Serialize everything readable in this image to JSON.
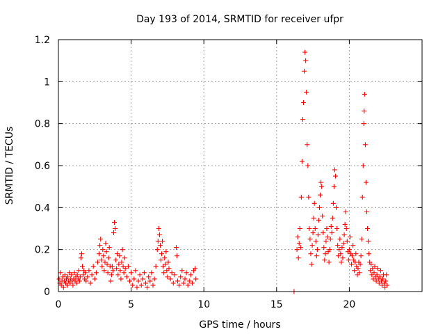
{
  "chart_data": {
    "type": "scatter",
    "title": "Day 193 of 2014, SRMTID for receiver ufpr",
    "xlabel": "GPS time / hours",
    "ylabel": "SRMTID / TECUs",
    "xlim": [
      0,
      25
    ],
    "ylim": [
      0,
      1.2
    ],
    "x_ticks": [
      0,
      5,
      10,
      15,
      20
    ],
    "x_tick_labels": [
      "0",
      "5",
      "10",
      "15",
      "20"
    ],
    "y_ticks": [
      0,
      0.2,
      0.4,
      0.6,
      0.8,
      1.0,
      1.2
    ],
    "y_tick_labels": [
      "0",
      "0.2",
      "0.4",
      "0.6",
      "0.8",
      "1",
      "1.2"
    ],
    "grid": true,
    "marker": "plus",
    "series": [
      {
        "name": "SRMTID",
        "color": "#ff0000",
        "points": [
          [
            0.05,
            0.06
          ],
          [
            0.1,
            0.04
          ],
          [
            0.15,
            0.09
          ],
          [
            0.2,
            0.03
          ],
          [
            0.25,
            0.05
          ],
          [
            0.3,
            0.07
          ],
          [
            0.35,
            0.02
          ],
          [
            0.4,
            0.05
          ],
          [
            0.45,
            0.08
          ],
          [
            0.5,
            0.04
          ],
          [
            0.55,
            0.06
          ],
          [
            0.6,
            0.03
          ],
          [
            0.65,
            0.07
          ],
          [
            0.7,
            0.05
          ],
          [
            0.75,
            0.09
          ],
          [
            0.8,
            0.04
          ],
          [
            0.85,
            0.06
          ],
          [
            0.9,
            0.08
          ],
          [
            0.95,
            0.05
          ],
          [
            1.0,
            0.03
          ],
          [
            1.05,
            0.06
          ],
          [
            1.1,
            0.09
          ],
          [
            1.15,
            0.05
          ],
          [
            1.2,
            0.07
          ],
          [
            1.25,
            0.04
          ],
          [
            1.3,
            0.08
          ],
          [
            1.35,
            0.06
          ],
          [
            1.4,
            0.1
          ],
          [
            1.45,
            0.05
          ],
          [
            1.5,
            0.07
          ],
          [
            1.55,
            0.16
          ],
          [
            1.6,
            0.18
          ],
          [
            1.65,
            0.12
          ],
          [
            1.7,
            0.08
          ],
          [
            1.75,
            0.1
          ],
          [
            1.8,
            0.06
          ],
          [
            1.85,
            0.09
          ],
          [
            1.9,
            0.05
          ],
          [
            2.0,
            0.07
          ],
          [
            2.1,
            0.1
          ],
          [
            2.2,
            0.04
          ],
          [
            2.3,
            0.08
          ],
          [
            2.4,
            0.12
          ],
          [
            2.5,
            0.06
          ],
          [
            2.6,
            0.09
          ],
          [
            2.7,
            0.14
          ],
          [
            2.8,
            0.18
          ],
          [
            2.85,
            0.22
          ],
          [
            2.9,
            0.25
          ],
          [
            2.95,
            0.15
          ],
          [
            3.0,
            0.12
          ],
          [
            3.05,
            0.2
          ],
          [
            3.1,
            0.17
          ],
          [
            3.15,
            0.1
          ],
          [
            3.2,
            0.14
          ],
          [
            3.25,
            0.23
          ],
          [
            3.3,
            0.19
          ],
          [
            3.35,
            0.13
          ],
          [
            3.4,
            0.09
          ],
          [
            3.45,
            0.16
          ],
          [
            3.5,
            0.21
          ],
          [
            3.55,
            0.12
          ],
          [
            3.6,
            0.05
          ],
          [
            3.65,
            0.08
          ],
          [
            3.7,
            0.12
          ],
          [
            3.75,
            0.1
          ],
          [
            3.8,
            0.28
          ],
          [
            3.85,
            0.33
          ],
          [
            3.9,
            0.3
          ],
          [
            3.95,
            0.15
          ],
          [
            4.0,
            0.11
          ],
          [
            4.05,
            0.18
          ],
          [
            4.1,
            0.08
          ],
          [
            4.15,
            0.13
          ],
          [
            4.2,
            0.17
          ],
          [
            4.25,
            0.1
          ],
          [
            4.3,
            0.06
          ],
          [
            4.35,
            0.14
          ],
          [
            4.4,
            0.2
          ],
          [
            4.45,
            0.12
          ],
          [
            4.5,
            0.09
          ],
          [
            4.55,
            0.16
          ],
          [
            4.6,
            0.11
          ],
          [
            4.7,
            0.07
          ],
          [
            4.8,
            0.12
          ],
          [
            4.9,
            0.05
          ],
          [
            5.0,
            0.09
          ],
          [
            5.1,
            0.03
          ],
          [
            5.2,
            0.06
          ],
          [
            5.3,
            0.1
          ],
          [
            5.4,
            0.02
          ],
          [
            5.5,
            0.05
          ],
          [
            5.6,
            0.08
          ],
          [
            5.7,
            0.03
          ],
          [
            5.8,
            0.06
          ],
          [
            5.9,
            0.09
          ],
          [
            6.0,
            0.04
          ],
          [
            6.1,
            0.02
          ],
          [
            6.2,
            0.07
          ],
          [
            6.3,
            0.05
          ],
          [
            6.4,
            0.09
          ],
          [
            6.5,
            0.03
          ],
          [
            6.6,
            0.06
          ],
          [
            6.7,
            0.12
          ],
          [
            6.8,
            0.2
          ],
          [
            6.85,
            0.24
          ],
          [
            6.9,
            0.3
          ],
          [
            6.95,
            0.27
          ],
          [
            7.0,
            0.22
          ],
          [
            7.05,
            0.15
          ],
          [
            7.1,
            0.18
          ],
          [
            7.15,
            0.24
          ],
          [
            7.2,
            0.12
          ],
          [
            7.25,
            0.09
          ],
          [
            7.3,
            0.16
          ],
          [
            7.35,
            0.13
          ],
          [
            7.4,
            0.19
          ],
          [
            7.45,
            0.1
          ],
          [
            7.5,
            0.07
          ],
          [
            7.55,
            0.14
          ],
          [
            7.6,
            0.11
          ],
          [
            7.7,
            0.06
          ],
          [
            7.8,
            0.09
          ],
          [
            7.9,
            0.04
          ],
          [
            8.0,
            0.08
          ],
          [
            8.1,
            0.21
          ],
          [
            8.15,
            0.17
          ],
          [
            8.2,
            0.05
          ],
          [
            8.3,
            0.03
          ],
          [
            8.4,
            0.07
          ],
          [
            8.5,
            0.1
          ],
          [
            8.6,
            0.04
          ],
          [
            8.7,
            0.06
          ],
          [
            8.8,
            0.09
          ],
          [
            8.9,
            0.03
          ],
          [
            9.0,
            0.05
          ],
          [
            9.1,
            0.08
          ],
          [
            9.2,
            0.04
          ],
          [
            9.3,
            0.1
          ],
          [
            9.4,
            0.11
          ],
          [
            9.45,
            0.06
          ],
          [
            16.2,
            0.0
          ],
          [
            16.4,
            0.2
          ],
          [
            16.45,
            0.26
          ],
          [
            16.5,
            0.16
          ],
          [
            16.55,
            0.23
          ],
          [
            16.6,
            0.3
          ],
          [
            16.65,
            0.21
          ],
          [
            16.7,
            0.45
          ],
          [
            16.75,
            0.62
          ],
          [
            16.8,
            0.82
          ],
          [
            16.85,
            0.9
          ],
          [
            16.9,
            1.05
          ],
          [
            16.95,
            1.14
          ],
          [
            17.0,
            1.1
          ],
          [
            17.05,
            0.95
          ],
          [
            17.1,
            0.7
          ],
          [
            17.15,
            0.6
          ],
          [
            17.2,
            0.45
          ],
          [
            17.25,
            0.3
          ],
          [
            17.3,
            0.25
          ],
          [
            17.35,
            0.18
          ],
          [
            17.4,
            0.13
          ],
          [
            17.45,
            0.22
          ],
          [
            17.5,
            0.28
          ],
          [
            17.55,
            0.35
          ],
          [
            17.6,
            0.42
          ],
          [
            17.65,
            0.3
          ],
          [
            17.7,
            0.24
          ],
          [
            17.75,
            0.17
          ],
          [
            17.8,
            0.2
          ],
          [
            17.85,
            0.27
          ],
          [
            17.9,
            0.34
          ],
          [
            17.95,
            0.4
          ],
          [
            18.0,
            0.46
          ],
          [
            18.05,
            0.52
          ],
          [
            18.1,
            0.5
          ],
          [
            18.15,
            0.36
          ],
          [
            18.2,
            0.28
          ],
          [
            18.25,
            0.21
          ],
          [
            18.3,
            0.15
          ],
          [
            18.35,
            0.18
          ],
          [
            18.4,
            0.24
          ],
          [
            18.45,
            0.3
          ],
          [
            18.5,
            0.26
          ],
          [
            18.55,
            0.19
          ],
          [
            18.6,
            0.14
          ],
          [
            18.65,
            0.2
          ],
          [
            18.7,
            0.25
          ],
          [
            18.75,
            0.31
          ],
          [
            18.8,
            0.28
          ],
          [
            18.85,
            0.35
          ],
          [
            18.9,
            0.42
          ],
          [
            18.95,
            0.5
          ],
          [
            19.0,
            0.58
          ],
          [
            19.05,
            0.55
          ],
          [
            19.1,
            0.4
          ],
          [
            19.15,
            0.3
          ],
          [
            19.2,
            0.22
          ],
          [
            19.25,
            0.17
          ],
          [
            19.3,
            0.2
          ],
          [
            19.35,
            0.25
          ],
          [
            19.4,
            0.18
          ],
          [
            19.45,
            0.14
          ],
          [
            19.5,
            0.21
          ],
          [
            19.55,
            0.16
          ],
          [
            19.6,
            0.23
          ],
          [
            19.65,
            0.27
          ],
          [
            19.7,
            0.32
          ],
          [
            19.75,
            0.38
          ],
          [
            19.8,
            0.3
          ],
          [
            19.85,
            0.24
          ],
          [
            19.9,
            0.19
          ],
          [
            19.95,
            0.15
          ],
          [
            20.0,
            0.2
          ],
          [
            20.05,
            0.26
          ],
          [
            20.1,
            0.18
          ],
          [
            20.15,
            0.13
          ],
          [
            20.2,
            0.17
          ],
          [
            20.25,
            0.22
          ],
          [
            20.3,
            0.15
          ],
          [
            20.35,
            0.1
          ],
          [
            20.4,
            0.14
          ],
          [
            20.45,
            0.18
          ],
          [
            20.5,
            0.12
          ],
          [
            20.55,
            0.08
          ],
          [
            20.6,
            0.11
          ],
          [
            20.65,
            0.14
          ],
          [
            20.7,
            0.09
          ],
          [
            20.75,
            0.13
          ],
          [
            20.8,
            0.17
          ],
          [
            20.85,
            0.25
          ],
          [
            20.9,
            0.45
          ],
          [
            20.95,
            0.6
          ],
          [
            21.0,
            0.8
          ],
          [
            21.02,
            0.86
          ],
          [
            21.05,
            0.94
          ],
          [
            21.1,
            0.7
          ],
          [
            21.15,
            0.52
          ],
          [
            21.2,
            0.38
          ],
          [
            21.25,
            0.3
          ],
          [
            21.3,
            0.24
          ],
          [
            21.35,
            0.18
          ],
          [
            21.4,
            0.14
          ],
          [
            21.45,
            0.1
          ],
          [
            21.5,
            0.13
          ],
          [
            21.55,
            0.08
          ],
          [
            21.6,
            0.11
          ],
          [
            21.65,
            0.06
          ],
          [
            21.7,
            0.09
          ],
          [
            21.75,
            0.12
          ],
          [
            21.8,
            0.07
          ],
          [
            21.85,
            0.05
          ],
          [
            21.9,
            0.08
          ],
          [
            21.95,
            0.11
          ],
          [
            22.0,
            0.06
          ],
          [
            22.05,
            0.04
          ],
          [
            22.1,
            0.07
          ],
          [
            22.15,
            0.1
          ],
          [
            22.2,
            0.05
          ],
          [
            22.25,
            0.03
          ],
          [
            22.3,
            0.06
          ],
          [
            22.35,
            0.08
          ],
          [
            22.4,
            0.04
          ],
          [
            22.45,
            0.02
          ],
          [
            22.5,
            0.05
          ],
          [
            22.55,
            0.08
          ],
          [
            22.6,
            0.03
          ]
        ]
      }
    ]
  }
}
